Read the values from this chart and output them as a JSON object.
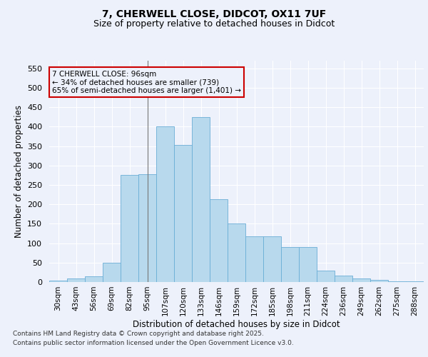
{
  "title_line1": "7, CHERWELL CLOSE, DIDCOT, OX11 7UF",
  "title_line2": "Size of property relative to detached houses in Didcot",
  "xlabel": "Distribution of detached houses by size in Didcot",
  "ylabel": "Number of detached properties",
  "categories": [
    "30sqm",
    "43sqm",
    "56sqm",
    "69sqm",
    "82sqm",
    "95sqm",
    "107sqm",
    "120sqm",
    "133sqm",
    "146sqm",
    "159sqm",
    "172sqm",
    "185sqm",
    "198sqm",
    "211sqm",
    "224sqm",
    "236sqm",
    "249sqm",
    "262sqm",
    "275sqm",
    "288sqm"
  ],
  "bar_heights": [
    3,
    10,
    14,
    49,
    275,
    277,
    400,
    353,
    424,
    213,
    150,
    117,
    117,
    90,
    90,
    30,
    17,
    10,
    5,
    2,
    2
  ],
  "bar_color": "#b8d9ed",
  "bar_edge_color": "#6aaed6",
  "vline_x": 5.5,
  "marker_label_line1": "7 CHERWELL CLOSE: 96sqm",
  "marker_label_line2": "← 34% of detached houses are smaller (739)",
  "marker_label_line3": "65% of semi-detached houses are larger (1,401) →",
  "annotation_box_color": "#cc0000",
  "ylim": [
    0,
    570
  ],
  "yticks": [
    0,
    50,
    100,
    150,
    200,
    250,
    300,
    350,
    400,
    450,
    500,
    550
  ],
  "background_color": "#edf1fb",
  "grid_color": "#ffffff",
  "footnote_line1": "Contains HM Land Registry data © Crown copyright and database right 2025.",
  "footnote_line2": "Contains public sector information licensed under the Open Government Licence v3.0."
}
